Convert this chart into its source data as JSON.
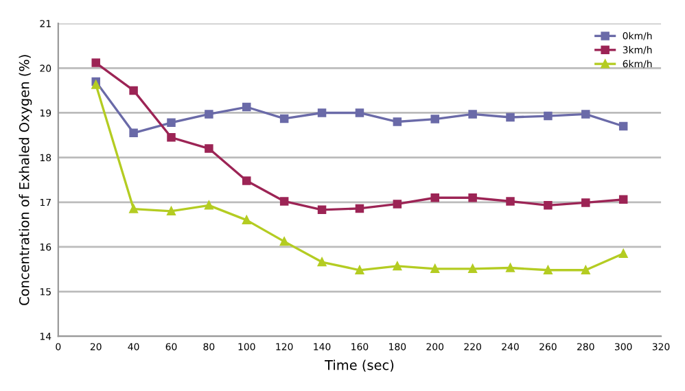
{
  "chart_data": {
    "type": "line",
    "xlabel": "Time (sec)",
    "ylabel": "Concentration of Exhaled Oxygen (%)",
    "x": [
      20,
      40,
      60,
      80,
      100,
      120,
      140,
      160,
      180,
      200,
      220,
      240,
      260,
      280,
      300
    ],
    "series": [
      {
        "name": "0km/h",
        "color": "#6a6aa8",
        "marker": "square",
        "values": [
          19.7,
          18.55,
          18.78,
          18.97,
          19.13,
          18.87,
          19.0,
          19.0,
          18.8,
          18.86,
          18.97,
          18.9,
          18.93,
          18.97,
          18.7
        ]
      },
      {
        "name": "3km/h",
        "color": "#9c2455",
        "marker": "square",
        "values": [
          20.12,
          19.5,
          18.45,
          18.2,
          17.48,
          17.02,
          16.83,
          16.86,
          16.96,
          17.1,
          17.1,
          17.02,
          16.93,
          16.99,
          17.06
        ]
      },
      {
        "name": "6km/h",
        "color": "#b4cc22",
        "marker": "triangle",
        "values": [
          19.63,
          16.85,
          16.8,
          16.93,
          16.6,
          16.12,
          15.66,
          15.48,
          15.57,
          15.51,
          15.51,
          15.53,
          15.48,
          15.48,
          15.85
        ]
      }
    ],
    "xlim": [
      0,
      320
    ],
    "xticks": [
      0,
      20,
      40,
      60,
      80,
      100,
      120,
      140,
      160,
      180,
      200,
      220,
      240,
      260,
      280,
      300,
      320
    ],
    "ylim": [
      14,
      21
    ],
    "yticks": [
      14,
      15,
      16,
      17,
      18,
      19,
      20,
      21
    ],
    "grid": "y",
    "legend": "top right",
    "line_style": "solid"
  }
}
